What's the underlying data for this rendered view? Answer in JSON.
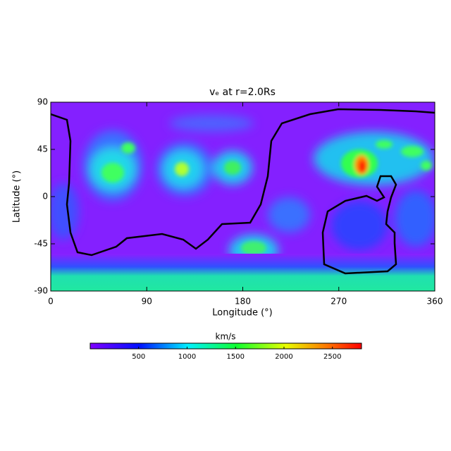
{
  "chart_data": {
    "type": "heatmap",
    "title": "vₑ at r=2.0Rs",
    "x_label": "Longitude (°)",
    "y_label": "Latitude (°)",
    "xlim": [
      0,
      360
    ],
    "xticks": [
      0,
      90,
      180,
      270,
      360
    ],
    "ylim": [
      -90,
      90
    ],
    "yticks": [
      -90,
      -45,
      0,
      45,
      90
    ],
    "colorbar": {
      "label": "km/s",
      "lim": [
        0,
        2800
      ],
      "ticks": [
        500,
        1000,
        1500,
        2000,
        2500
      ]
    }
  }
}
